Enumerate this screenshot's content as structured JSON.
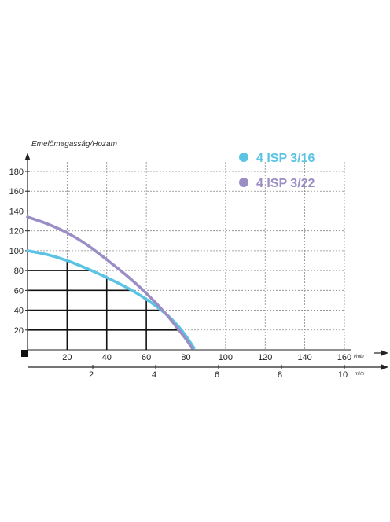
{
  "chart_data": {
    "type": "line",
    "title": "",
    "ylabel": "Emelőmagasság/Hozam",
    "xlabel_unit": "l/min",
    "x2label_unit": "m³/h",
    "xlim": [
      0,
      160
    ],
    "ylim": [
      0,
      180
    ],
    "x_ticks": [
      "20",
      "40",
      "60",
      "80",
      "100",
      "120",
      "140",
      "160"
    ],
    "y_ticks": [
      "20",
      "40",
      "60",
      "80",
      "100",
      "120",
      "140",
      "160",
      "180"
    ],
    "x2_ticks": [
      "2",
      "4",
      "6",
      "8",
      "10"
    ],
    "x2_tick_values": [
      2,
      4,
      6,
      8,
      10
    ],
    "grid": true,
    "legend_position": "top-right",
    "series": [
      {
        "name": "4 ISP 3/16",
        "color": "#5bc3e3",
        "x": [
          0,
          10,
          20,
          30,
          40,
          50,
          60,
          70,
          76,
          80,
          84
        ],
        "y": [
          100,
          96,
          90,
          82,
          73,
          63,
          51,
          36,
          24,
          14,
          2
        ]
      },
      {
        "name": "4 ISP 3/22",
        "color": "#9b8ec5",
        "x": [
          0,
          10,
          20,
          30,
          40,
          50,
          60,
          70,
          76,
          80,
          83
        ],
        "y": [
          134,
          127,
          118,
          106,
          91,
          75,
          57,
          36,
          21,
          11,
          2
        ]
      }
    ]
  }
}
